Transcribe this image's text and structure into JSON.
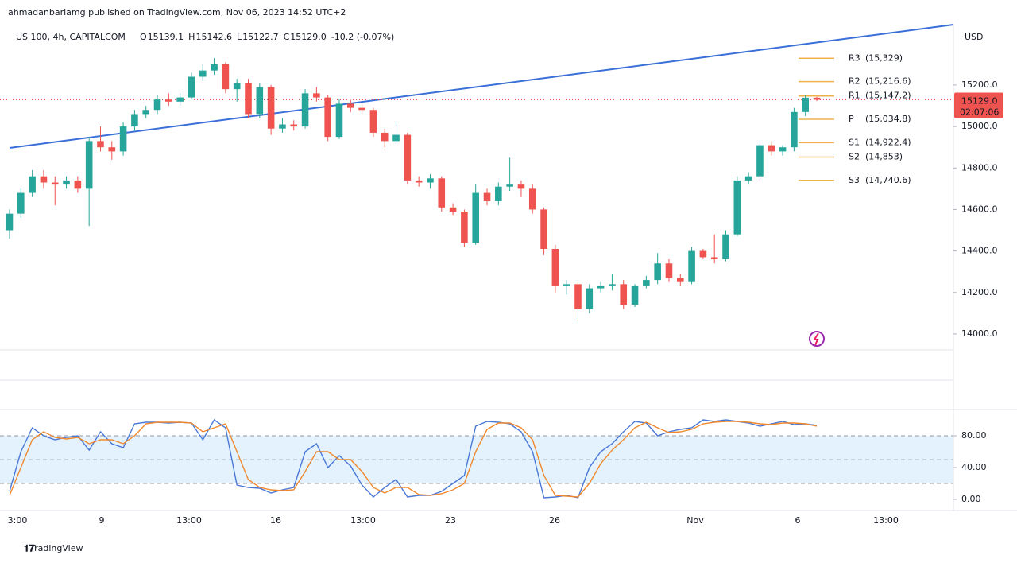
{
  "header": {
    "publisher": "ahmadanbariamg published on TradingView.com, Nov 06, 2023 14:52 UTC+2",
    "symbol": "US 100, 4h, CAPITALCOM",
    "ohlc": [
      {
        "key": "O",
        "value": "15139.1"
      },
      {
        "key": "H",
        "value": "15142.6"
      },
      {
        "key": "L",
        "value": "15122.7"
      },
      {
        "key": "C",
        "value": "15129.0"
      }
    ],
    "change": "-10.2 (-0.07%)"
  },
  "chart_data": [
    {
      "type": "candlestick",
      "currency": "USD",
      "up_color": "#26a69a",
      "down_color": "#ef5350",
      "ylim": [
        13923,
        15495
      ],
      "yticks": [
        {
          "value": 14000,
          "label": "14000.0"
        },
        {
          "value": 14200,
          "label": "14200.0"
        },
        {
          "value": 14400,
          "label": "14400.0"
        },
        {
          "value": 14600,
          "label": "14600.0"
        },
        {
          "value": 14800,
          "label": "14800.0"
        },
        {
          "value": 15000,
          "label": "15000.0"
        },
        {
          "value": 15200,
          "label": "15200.0"
        }
      ],
      "x_labels": [
        "3:00",
        "9",
        "13:00",
        "16",
        "13:00",
        "23",
        "26",
        "Nov",
        "6",
        "13:00"
      ],
      "candles": [
        [
          14500,
          14600,
          14460,
          14580
        ],
        [
          14580,
          14700,
          14560,
          14680
        ],
        [
          14680,
          14790,
          14660,
          14760
        ],
        [
          14760,
          14790,
          14700,
          14730
        ],
        [
          14730,
          14760,
          14620,
          14720
        ],
        [
          14720,
          14760,
          14700,
          14740
        ],
        [
          14740,
          14760,
          14680,
          14700
        ],
        [
          14700,
          14950,
          14520,
          14930
        ],
        [
          14930,
          15000,
          14880,
          14900
        ],
        [
          14900,
          14930,
          14840,
          14880
        ],
        [
          14880,
          15020,
          14860,
          15000
        ],
        [
          15000,
          15080,
          14980,
          15060
        ],
        [
          15060,
          15100,
          15040,
          15080
        ],
        [
          15080,
          15150,
          15060,
          15130
        ],
        [
          15130,
          15160,
          15100,
          15120
        ],
        [
          15120,
          15160,
          15100,
          15140
        ],
        [
          15140,
          15260,
          15130,
          15240
        ],
        [
          15240,
          15300,
          15220,
          15270
        ],
        [
          15270,
          15330,
          15250,
          15300
        ],
        [
          15300,
          15310,
          15160,
          15180
        ],
        [
          15180,
          15230,
          15120,
          15210
        ],
        [
          15210,
          15230,
          15040,
          15060
        ],
        [
          15060,
          15210,
          15040,
          15190
        ],
        [
          15190,
          15200,
          14960,
          14990
        ],
        [
          14990,
          15040,
          14970,
          15010
        ],
        [
          15010,
          15030,
          14980,
          15000
        ],
        [
          15000,
          15180,
          14990,
          15160
        ],
        [
          15160,
          15190,
          15120,
          15140
        ],
        [
          15140,
          15150,
          14930,
          14950
        ],
        [
          14950,
          15130,
          14940,
          15110
        ],
        [
          15110,
          15130,
          15070,
          15090
        ],
        [
          15090,
          15110,
          15060,
          15080
        ],
        [
          15080,
          15090,
          14950,
          14970
        ],
        [
          14970,
          14990,
          14900,
          14930
        ],
        [
          14930,
          15020,
          14910,
          14960
        ],
        [
          14960,
          14970,
          14720,
          14740
        ],
        [
          14740,
          14760,
          14710,
          14730
        ],
        [
          14730,
          14770,
          14700,
          14750
        ],
        [
          14750,
          14760,
          14590,
          14610
        ],
        [
          14610,
          14630,
          14570,
          14590
        ],
        [
          14590,
          14600,
          14420,
          14440
        ],
        [
          14440,
          14720,
          14430,
          14680
        ],
        [
          14680,
          14700,
          14620,
          14640
        ],
        [
          14640,
          14730,
          14620,
          14710
        ],
        [
          14710,
          14850,
          14690,
          14720
        ],
        [
          14720,
          14740,
          14660,
          14700
        ],
        [
          14700,
          14720,
          14580,
          14600
        ],
        [
          14600,
          14610,
          14380,
          14410
        ],
        [
          14410,
          14430,
          14200,
          14230
        ],
        [
          14230,
          14260,
          14190,
          14240
        ],
        [
          14240,
          14250,
          14060,
          14120
        ],
        [
          14120,
          14240,
          14100,
          14220
        ],
        [
          14220,
          14250,
          14200,
          14230
        ],
        [
          14230,
          14290,
          14210,
          14240
        ],
        [
          14240,
          14260,
          14120,
          14140
        ],
        [
          14140,
          14240,
          14130,
          14230
        ],
        [
          14230,
          14280,
          14220,
          14260
        ],
        [
          14260,
          14390,
          14240,
          14340
        ],
        [
          14340,
          14360,
          14250,
          14270
        ],
        [
          14270,
          14290,
          14230,
          14250
        ],
        [
          14250,
          14420,
          14240,
          14400
        ],
        [
          14400,
          14410,
          14360,
          14370
        ],
        [
          14370,
          14480,
          14340,
          14360
        ],
        [
          14360,
          14500,
          14350,
          14480
        ],
        [
          14480,
          14760,
          14470,
          14740
        ],
        [
          14740,
          14780,
          14720,
          14760
        ],
        [
          14760,
          14930,
          14740,
          14910
        ],
        [
          14910,
          14930,
          14860,
          14880
        ],
        [
          14880,
          14910,
          14860,
          14900
        ],
        [
          14900,
          15090,
          14880,
          15070
        ],
        [
          15070,
          15150,
          15050,
          15139.1
        ],
        [
          15139.1,
          15142.6,
          15122.7,
          15129
        ]
      ],
      "last_price": {
        "value": 15129,
        "label": "15129.0"
      },
      "countdown": "02:07:06",
      "trendline": {
        "start": 14897,
        "end": 15491,
        "color": "#3a6fd8"
      },
      "pivot_color": "#f0b04c",
      "pivots": [
        {
          "name": "R3",
          "value": 15329,
          "label": "(15,329)"
        },
        {
          "name": "R2",
          "value": 15216.6,
          "label": "(15,216.6)"
        },
        {
          "name": "R1",
          "value": 15147.2,
          "label": "(15,147.2)"
        },
        {
          "name": "P",
          "value": 15034.8,
          "label": "(15,034.8)"
        },
        {
          "name": "S1",
          "value": 14922.4,
          "label": "(14,922.4)"
        },
        {
          "name": "S2",
          "value": 14853,
          "label": "(14,853)"
        },
        {
          "name": "S3",
          "value": 14740.6,
          "label": "(14,740.6)"
        }
      ]
    },
    {
      "type": "line",
      "ylim": [
        -14,
        111
      ],
      "yticks": [
        {
          "value": 0,
          "label": "0.00"
        },
        {
          "value": 40,
          "label": "40.00"
        },
        {
          "value": 80,
          "label": "80.00"
        }
      ],
      "band": [
        20,
        80
      ],
      "band_color": "#e3f2fd",
      "series": [
        {
          "color": "#4a78d6",
          "values": [
            10,
            60,
            90,
            80,
            75,
            78,
            80,
            62,
            85,
            70,
            65,
            95,
            97,
            97,
            96,
            97,
            96,
            75,
            100,
            90,
            18,
            15,
            14,
            8,
            12,
            15,
            60,
            70,
            40,
            55,
            42,
            18,
            3,
            15,
            25,
            3,
            5,
            5,
            10,
            20,
            30,
            92,
            98,
            97,
            95,
            85,
            60,
            2,
            3,
            5,
            2,
            40,
            60,
            70,
            85,
            98,
            96,
            80,
            85,
            88,
            90,
            100,
            98,
            100,
            98,
            96,
            92,
            95,
            98,
            94,
            95,
            93
          ]
        },
        {
          "color": "#f0892e",
          "values": [
            5,
            40,
            75,
            85,
            78,
            76,
            78,
            70,
            75,
            75,
            70,
            80,
            95,
            97,
            97,
            97,
            96,
            85,
            90,
            95,
            60,
            25,
            15,
            12,
            11,
            12,
            35,
            60,
            60,
            50,
            50,
            35,
            15,
            8,
            15,
            15,
            6,
            5,
            7,
            12,
            20,
            60,
            88,
            96,
            96,
            90,
            75,
            30,
            5,
            4,
            3,
            20,
            45,
            62,
            75,
            90,
            97,
            90,
            84,
            85,
            88,
            95,
            97,
            98,
            98,
            97,
            95,
            94,
            96,
            96,
            95,
            92
          ]
        }
      ]
    }
  ],
  "footer": {
    "brand": "TradingView"
  }
}
